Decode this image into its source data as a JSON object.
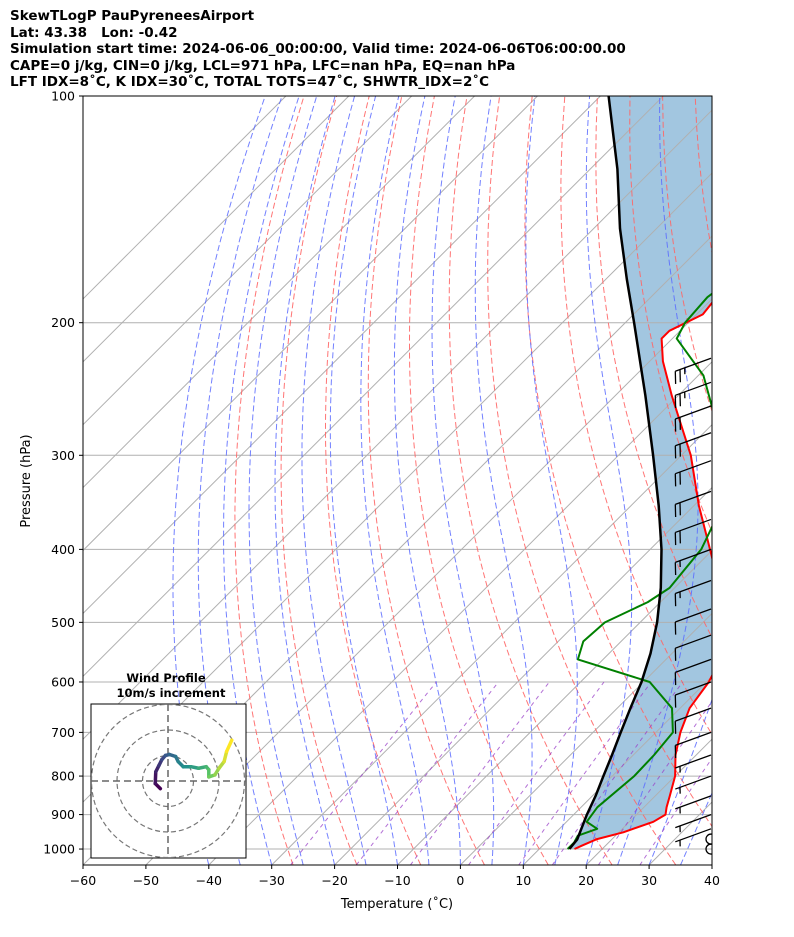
{
  "header": {
    "line1": "SkewTLogP PauPyreneesAirport",
    "line2": "Lat: 43.38   Lon: -0.42",
    "line3": "Simulation start time: 2024-06-06_00:00:00, Valid time: 2024-06-06T06:00:00.00",
    "line4": "CAPE=0 j/kg, CIN=0 j/kg, LCL=971 hPa, LFC=nan hPa, EQ=nan hPa",
    "line5": "LFT IDX=8˚C, K IDX=30˚C, TOTAL TOTS=47˚C, SHWTR_IDX=2˚C"
  },
  "chart_data": {
    "type": "line",
    "xlabel": "Temperature (˚C)",
    "ylabel": "Pressure (hPa)",
    "x_ticks": [
      -60,
      -50,
      -40,
      -30,
      -20,
      -10,
      0,
      10,
      20,
      30,
      40
    ],
    "p_ticks": [
      100,
      200,
      300,
      400,
      500,
      600,
      700,
      800,
      900,
      1000
    ],
    "xlim": [
      -60,
      40
    ],
    "plim": [
      1050,
      100
    ],
    "y_scale": "log",
    "grid": true,
    "skew": "45 degrees",
    "colors": {
      "temperature": "#ff0000",
      "dewpoint": "#008000",
      "parcel": "#000000",
      "fill": "#a2c6e0",
      "dry_adiabat": "#ff6666",
      "moist_adiabat": "#5a6bff",
      "mixing_ratio": "#9a40c8",
      "isotherm": "#b0b0b0"
    },
    "series": [
      {
        "key": "temperature",
        "points": [
          [
            1000,
            15.6
          ],
          [
            990,
            16.2
          ],
          [
            970,
            17.6
          ],
          [
            950,
            20.7
          ],
          [
            920,
            23.8
          ],
          [
            900,
            24.6
          ],
          [
            880,
            23.6
          ],
          [
            850,
            22.3
          ],
          [
            800,
            20.0
          ],
          [
            750,
            16.7
          ],
          [
            700,
            13.9
          ],
          [
            650,
            11.5
          ],
          [
            600,
            10.4
          ],
          [
            550,
            8.2
          ],
          [
            500,
            3.5
          ],
          [
            450,
            -2.8
          ],
          [
            400,
            -10.5
          ],
          [
            350,
            -19.2
          ],
          [
            300,
            -28.5
          ],
          [
            250,
            -41.0
          ],
          [
            225,
            -47.9
          ],
          [
            210,
            -51.7
          ],
          [
            205,
            -51.7
          ],
          [
            195,
            -49.0
          ],
          [
            186,
            -49.5
          ],
          [
            184,
            -50.3
          ],
          [
            175,
            -46.1
          ],
          [
            165,
            -42.0
          ],
          [
            155,
            -38.7
          ],
          [
            145,
            -36.1
          ],
          [
            135,
            -34.5
          ],
          [
            125,
            -33.0
          ],
          [
            115,
            -31.4
          ],
          [
            108,
            -30.7
          ],
          [
            100,
            -30.2
          ]
        ]
      },
      {
        "key": "dewpoint",
        "points": [
          [
            1000,
            14.5
          ],
          [
            980,
            14.5
          ],
          [
            960,
            14.0
          ],
          [
            940,
            16.0
          ],
          [
            920,
            13.2
          ],
          [
            880,
            12.6
          ],
          [
            800,
            13.5
          ],
          [
            750,
            13.3
          ],
          [
            700,
            12.7
          ],
          [
            650,
            8.7
          ],
          [
            600,
            1.0
          ],
          [
            560,
            -14.0
          ],
          [
            530,
            -16.0
          ],
          [
            500,
            -15.6
          ],
          [
            470,
            -12.0
          ],
          [
            450,
            -10.8
          ],
          [
            400,
            -11.9
          ],
          [
            370,
            -14.0
          ],
          [
            340,
            -17.8
          ],
          [
            300,
            -24.0
          ],
          [
            260,
            -32.5
          ],
          [
            235,
            -39.2
          ],
          [
            210,
            -49.3
          ],
          [
            200,
            -50.5
          ],
          [
            185,
            -51.0
          ],
          [
            180,
            -50.5
          ],
          [
            170,
            -49.4
          ],
          [
            158,
            -48.6
          ],
          [
            150,
            -47.7
          ],
          [
            143,
            -52.0
          ],
          [
            135,
            -60.2
          ],
          [
            125,
            -60.0
          ],
          [
            115,
            -56.5
          ],
          [
            108,
            -53.5
          ],
          [
            100,
            -49.7
          ]
        ]
      },
      {
        "key": "parcel",
        "points": [
          [
            1000,
            14.8
          ],
          [
            971,
            14.5
          ],
          [
            900,
            12.1
          ],
          [
            850,
            10.5
          ],
          [
            800,
            8.6
          ],
          [
            750,
            6.6
          ],
          [
            700,
            4.4
          ],
          [
            650,
            2.1
          ],
          [
            600,
            -0.3
          ],
          [
            550,
            -3.4
          ],
          [
            500,
            -7.3
          ],
          [
            450,
            -12.2
          ],
          [
            400,
            -18.2
          ],
          [
            350,
            -25.6
          ],
          [
            300,
            -34.5
          ],
          [
            250,
            -45.2
          ],
          [
            200,
            -58.6
          ],
          [
            175,
            -66.7
          ],
          [
            150,
            -75.8
          ],
          [
            125,
            -85.7
          ],
          [
            100,
            -98.7
          ]
        ]
      }
    ],
    "wind_barbs": [
      {
        "p": 1000,
        "speed_kt": 0
      },
      {
        "p": 970,
        "speed_kt": 0
      },
      {
        "p": 940,
        "speed_kt": 5
      },
      {
        "p": 900,
        "speed_kt": 5
      },
      {
        "p": 850,
        "speed_kt": 5
      },
      {
        "p": 800,
        "speed_kt": 5
      },
      {
        "p": 750,
        "speed_kt": 5
      },
      {
        "p": 700,
        "speed_kt": 10
      },
      {
        "p": 650,
        "speed_kt": 10
      },
      {
        "p": 600,
        "speed_kt": 10
      },
      {
        "p": 560,
        "speed_kt": 10
      },
      {
        "p": 520,
        "speed_kt": 10
      },
      {
        "p": 480,
        "speed_kt": 10
      },
      {
        "p": 440,
        "speed_kt": 15
      },
      {
        "p": 400,
        "speed_kt": 15
      },
      {
        "p": 365,
        "speed_kt": 20
      },
      {
        "p": 335,
        "speed_kt": 20
      },
      {
        "p": 305,
        "speed_kt": 20
      },
      {
        "p": 280,
        "speed_kt": 20
      },
      {
        "p": 258,
        "speed_kt": 20
      },
      {
        "p": 240,
        "speed_kt": 25
      },
      {
        "p": 223,
        "speed_kt": 25
      }
    ],
    "hodograph": {
      "title": "Wind Profile",
      "subtitle": "10m/s increment",
      "rings": 3,
      "colormap": [
        "#440154",
        "#3b528b",
        "#21918c",
        "#5ec962",
        "#fde725"
      ],
      "points": [
        [
          -1.5,
          -1.5
        ],
        [
          -2.5,
          -0.5
        ],
        [
          -2.4,
          1.8
        ],
        [
          -1.8,
          3.0
        ],
        [
          -1.2,
          4.2
        ],
        [
          -0.5,
          5.0
        ],
        [
          0.3,
          5.2
        ],
        [
          1.5,
          4.8
        ],
        [
          2.0,
          3.8
        ],
        [
          3.0,
          2.8
        ],
        [
          4.5,
          2.8
        ],
        [
          6.0,
          2.5
        ],
        [
          7.5,
          2.8
        ],
        [
          8.0,
          2.2
        ],
        [
          8.0,
          0.8
        ],
        [
          9.2,
          1.2
        ],
        [
          10.0,
          2.5
        ],
        [
          11.0,
          3.8
        ],
        [
          11.5,
          5.8
        ],
        [
          12.5,
          8.0
        ]
      ]
    }
  }
}
